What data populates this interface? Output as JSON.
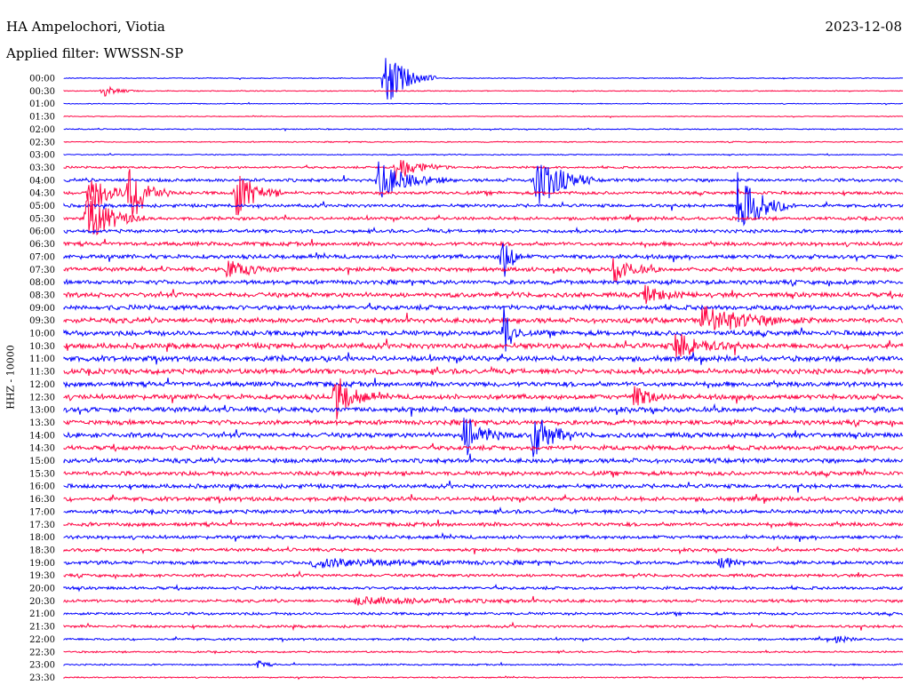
{
  "header": {
    "station": "HA Ampelochori, Viotia",
    "filter": "Applied filter: WWSSN-SP",
    "date": "2023-12-08"
  },
  "chart_data": {
    "type": "line",
    "title": "HA Ampelochori, Viotia",
    "subtitle": "Applied filter: WWSSN-SP",
    "date": "2023-12-08",
    "ylabel": "HHZ - 10000",
    "xlabel": "",
    "colors": [
      "#0000ff",
      "#ff0040"
    ],
    "time_labels": [
      "00:00",
      "00:30",
      "01:00",
      "01:30",
      "02:00",
      "02:30",
      "03:00",
      "03:30",
      "04:00",
      "04:30",
      "05:00",
      "05:30",
      "06:00",
      "06:30",
      "07:00",
      "07:30",
      "08:00",
      "08:30",
      "09:00",
      "09:30",
      "10:00",
      "10:30",
      "11:00",
      "11:30",
      "12:00",
      "12:30",
      "13:00",
      "13:30",
      "14:00",
      "14:30",
      "15:00",
      "15:30",
      "16:00",
      "16:30",
      "17:00",
      "17:30",
      "18:00",
      "18:30",
      "19:00",
      "19:30",
      "20:00",
      "20:30",
      "21:00",
      "21:30",
      "22:00",
      "22:30",
      "23:00",
      "23:30"
    ],
    "trace_noise_level": [
      0.4,
      0.4,
      0.4,
      0.4,
      0.5,
      0.5,
      0.5,
      1.0,
      1.5,
      1.5,
      1.5,
      1.5,
      1.6,
      1.8,
      1.9,
      1.9,
      2.0,
      2.2,
      2.2,
      2.3,
      2.4,
      2.5,
      2.5,
      2.4,
      2.3,
      2.3,
      2.4,
      2.2,
      2.2,
      2.1,
      2.1,
      2.0,
      1.9,
      1.9,
      1.8,
      1.8,
      1.6,
      1.5,
      1.6,
      1.4,
      1.4,
      1.3,
      1.3,
      1.2,
      1.0,
      0.8,
      0.7,
      0.6
    ],
    "events": [
      {
        "trace": 0,
        "x": 432,
        "amp": 38,
        "dur": 20
      },
      {
        "trace": 1,
        "x": 115,
        "amp": 7,
        "dur": 14
      },
      {
        "trace": 7,
        "x": 445,
        "amp": 16,
        "dur": 22
      },
      {
        "trace": 8,
        "x": 425,
        "amp": 22,
        "dur": 28
      },
      {
        "trace": 8,
        "x": 602,
        "amp": 40,
        "dur": 22
      },
      {
        "trace": 9,
        "x": 100,
        "amp": 26,
        "dur": 18
      },
      {
        "trace": 9,
        "x": 145,
        "amp": 42,
        "dur": 16
      },
      {
        "trace": 9,
        "x": 265,
        "amp": 30,
        "dur": 18
      },
      {
        "trace": 10,
        "x": 830,
        "amp": 42,
        "dur": 22
      },
      {
        "trace": 11,
        "x": 97,
        "amp": 32,
        "dur": 22
      },
      {
        "trace": 14,
        "x": 565,
        "amp": 36,
        "dur": 8
      },
      {
        "trace": 15,
        "x": 255,
        "amp": 10,
        "dur": 26
      },
      {
        "trace": 15,
        "x": 690,
        "amp": 16,
        "dur": 18
      },
      {
        "trace": 17,
        "x": 725,
        "amp": 10,
        "dur": 20
      },
      {
        "trace": 19,
        "x": 790,
        "amp": 16,
        "dur": 44
      },
      {
        "trace": 20,
        "x": 567,
        "amp": 34,
        "dur": 8
      },
      {
        "trace": 21,
        "x": 760,
        "amp": 16,
        "dur": 26
      },
      {
        "trace": 25,
        "x": 377,
        "amp": 28,
        "dur": 16
      },
      {
        "trace": 25,
        "x": 712,
        "amp": 14,
        "dur": 16
      },
      {
        "trace": 28,
        "x": 522,
        "amp": 26,
        "dur": 18
      },
      {
        "trace": 28,
        "x": 600,
        "amp": 32,
        "dur": 16
      },
      {
        "trace": 38,
        "x": 810,
        "amp": 10,
        "dur": 12
      },
      {
        "trace": 38,
        "x": 350,
        "amp": 5,
        "dur": 90
      },
      {
        "trace": 41,
        "x": 400,
        "amp": 4,
        "dur": 90
      },
      {
        "trace": 44,
        "x": 940,
        "amp": 6,
        "dur": 10
      },
      {
        "trace": 46,
        "x": 290,
        "amp": 5,
        "dur": 8
      }
    ]
  }
}
